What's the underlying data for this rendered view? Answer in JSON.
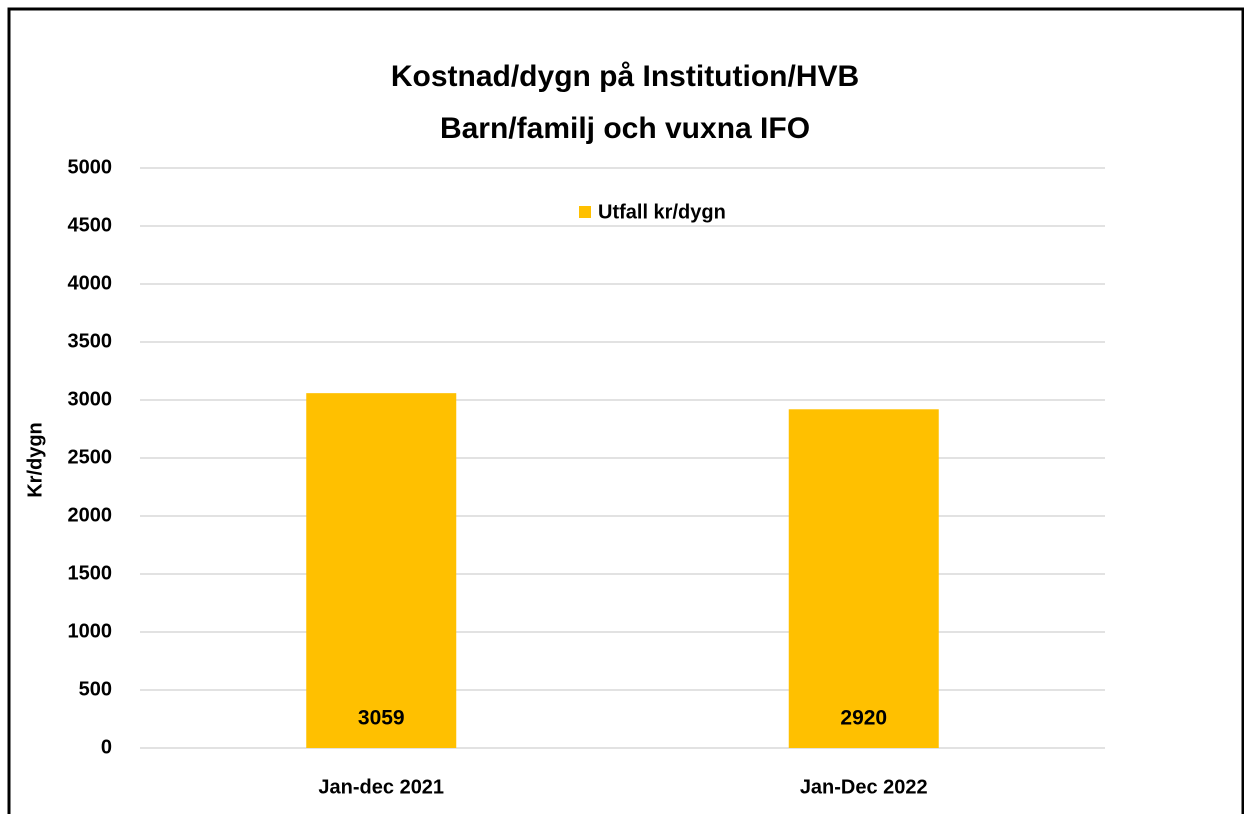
{
  "chart_data": {
    "type": "bar",
    "title": [
      "Kostnad/dygn på Institution/HVB",
      "Barn/familj och vuxna IFO"
    ],
    "y_label": "Kr/dygn",
    "categories": [
      "Jan-dec 2021",
      "Jan-Dec 2022"
    ],
    "series": [
      {
        "name": "Utfall kr/dygn",
        "color": "#ffc000",
        "values": [
          3059,
          2920
        ]
      }
    ],
    "ylim": [
      0,
      5000
    ],
    "yticks": [
      0,
      500,
      1000,
      1500,
      2000,
      2500,
      3000,
      3500,
      4000,
      4500,
      5000
    ],
    "grid": true,
    "legend": "top"
  }
}
